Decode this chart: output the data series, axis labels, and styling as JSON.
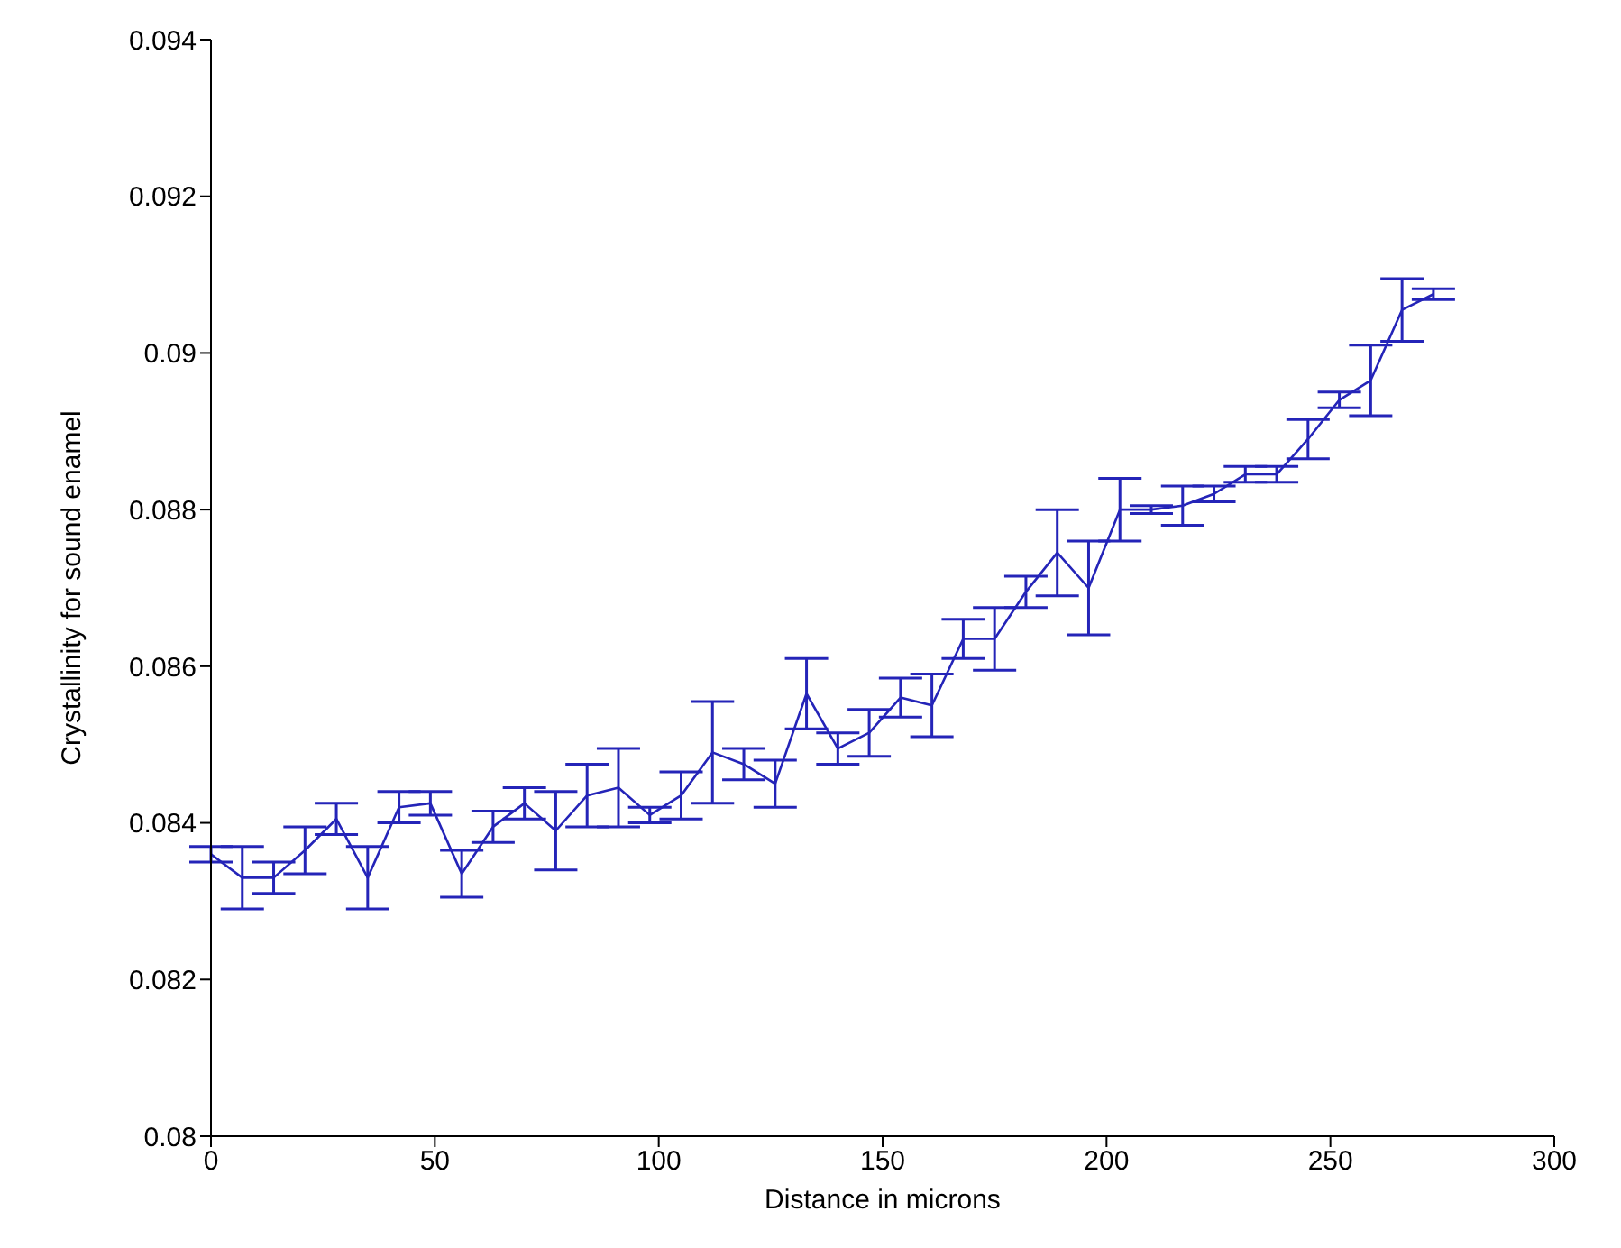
{
  "chart_data": {
    "type": "line",
    "xlabel": "Distance in microns",
    "ylabel": "Crystallinity for sound enamel",
    "x": [
      0,
      7,
      14,
      21,
      28,
      35,
      42,
      49,
      56,
      63,
      70,
      77,
      84,
      91,
      98,
      105,
      112,
      119,
      126,
      133,
      140,
      147,
      154,
      161,
      168,
      175,
      182,
      189,
      196,
      203,
      210,
      217,
      224,
      231,
      238,
      245,
      252,
      259,
      266,
      273
    ],
    "series": [
      {
        "color": "#2424b8",
        "values": [
          0.0836,
          0.0833,
          0.0833,
          0.08365,
          0.08405,
          0.0833,
          0.0842,
          0.08425,
          0.08335,
          0.08395,
          0.08425,
          0.0839,
          0.08435,
          0.08445,
          0.0841,
          0.08435,
          0.0849,
          0.08475,
          0.0845,
          0.08565,
          0.08495,
          0.08515,
          0.0856,
          0.0855,
          0.08635,
          0.08635,
          0.08695,
          0.08745,
          0.087,
          0.088,
          0.088,
          0.08805,
          0.0882,
          0.08845,
          0.08845,
          0.0889,
          0.0894,
          0.08965,
          0.09055,
          0.09075
        ],
        "errors": [
          0.0001,
          0.0004,
          0.0002,
          0.0003,
          0.0002,
          0.0004,
          0.0002,
          0.00015,
          0.0003,
          0.0002,
          0.0002,
          0.0005,
          0.0004,
          0.0005,
          0.0001,
          0.0003,
          0.00065,
          0.0002,
          0.0003,
          0.00045,
          0.0002,
          0.0003,
          0.00025,
          0.0004,
          0.00025,
          0.0004,
          0.0002,
          0.00055,
          0.0006,
          0.0004,
          5e-05,
          0.00025,
          0.0001,
          0.0001,
          0.0001,
          0.00025,
          0.0001,
          0.00045,
          0.0004,
          7e-05
        ]
      }
    ],
    "xlim": [
      0,
      300
    ],
    "xticks": [
      0,
      50,
      100,
      150,
      200,
      250,
      300
    ],
    "ylim": [
      0.08,
      0.094
    ],
    "yticks": [
      0.08,
      0.082,
      0.084,
      0.086,
      0.088,
      0.09,
      0.092,
      0.094
    ],
    "grid": false,
    "legend": false,
    "marker": "none",
    "line_style": "solid"
  }
}
